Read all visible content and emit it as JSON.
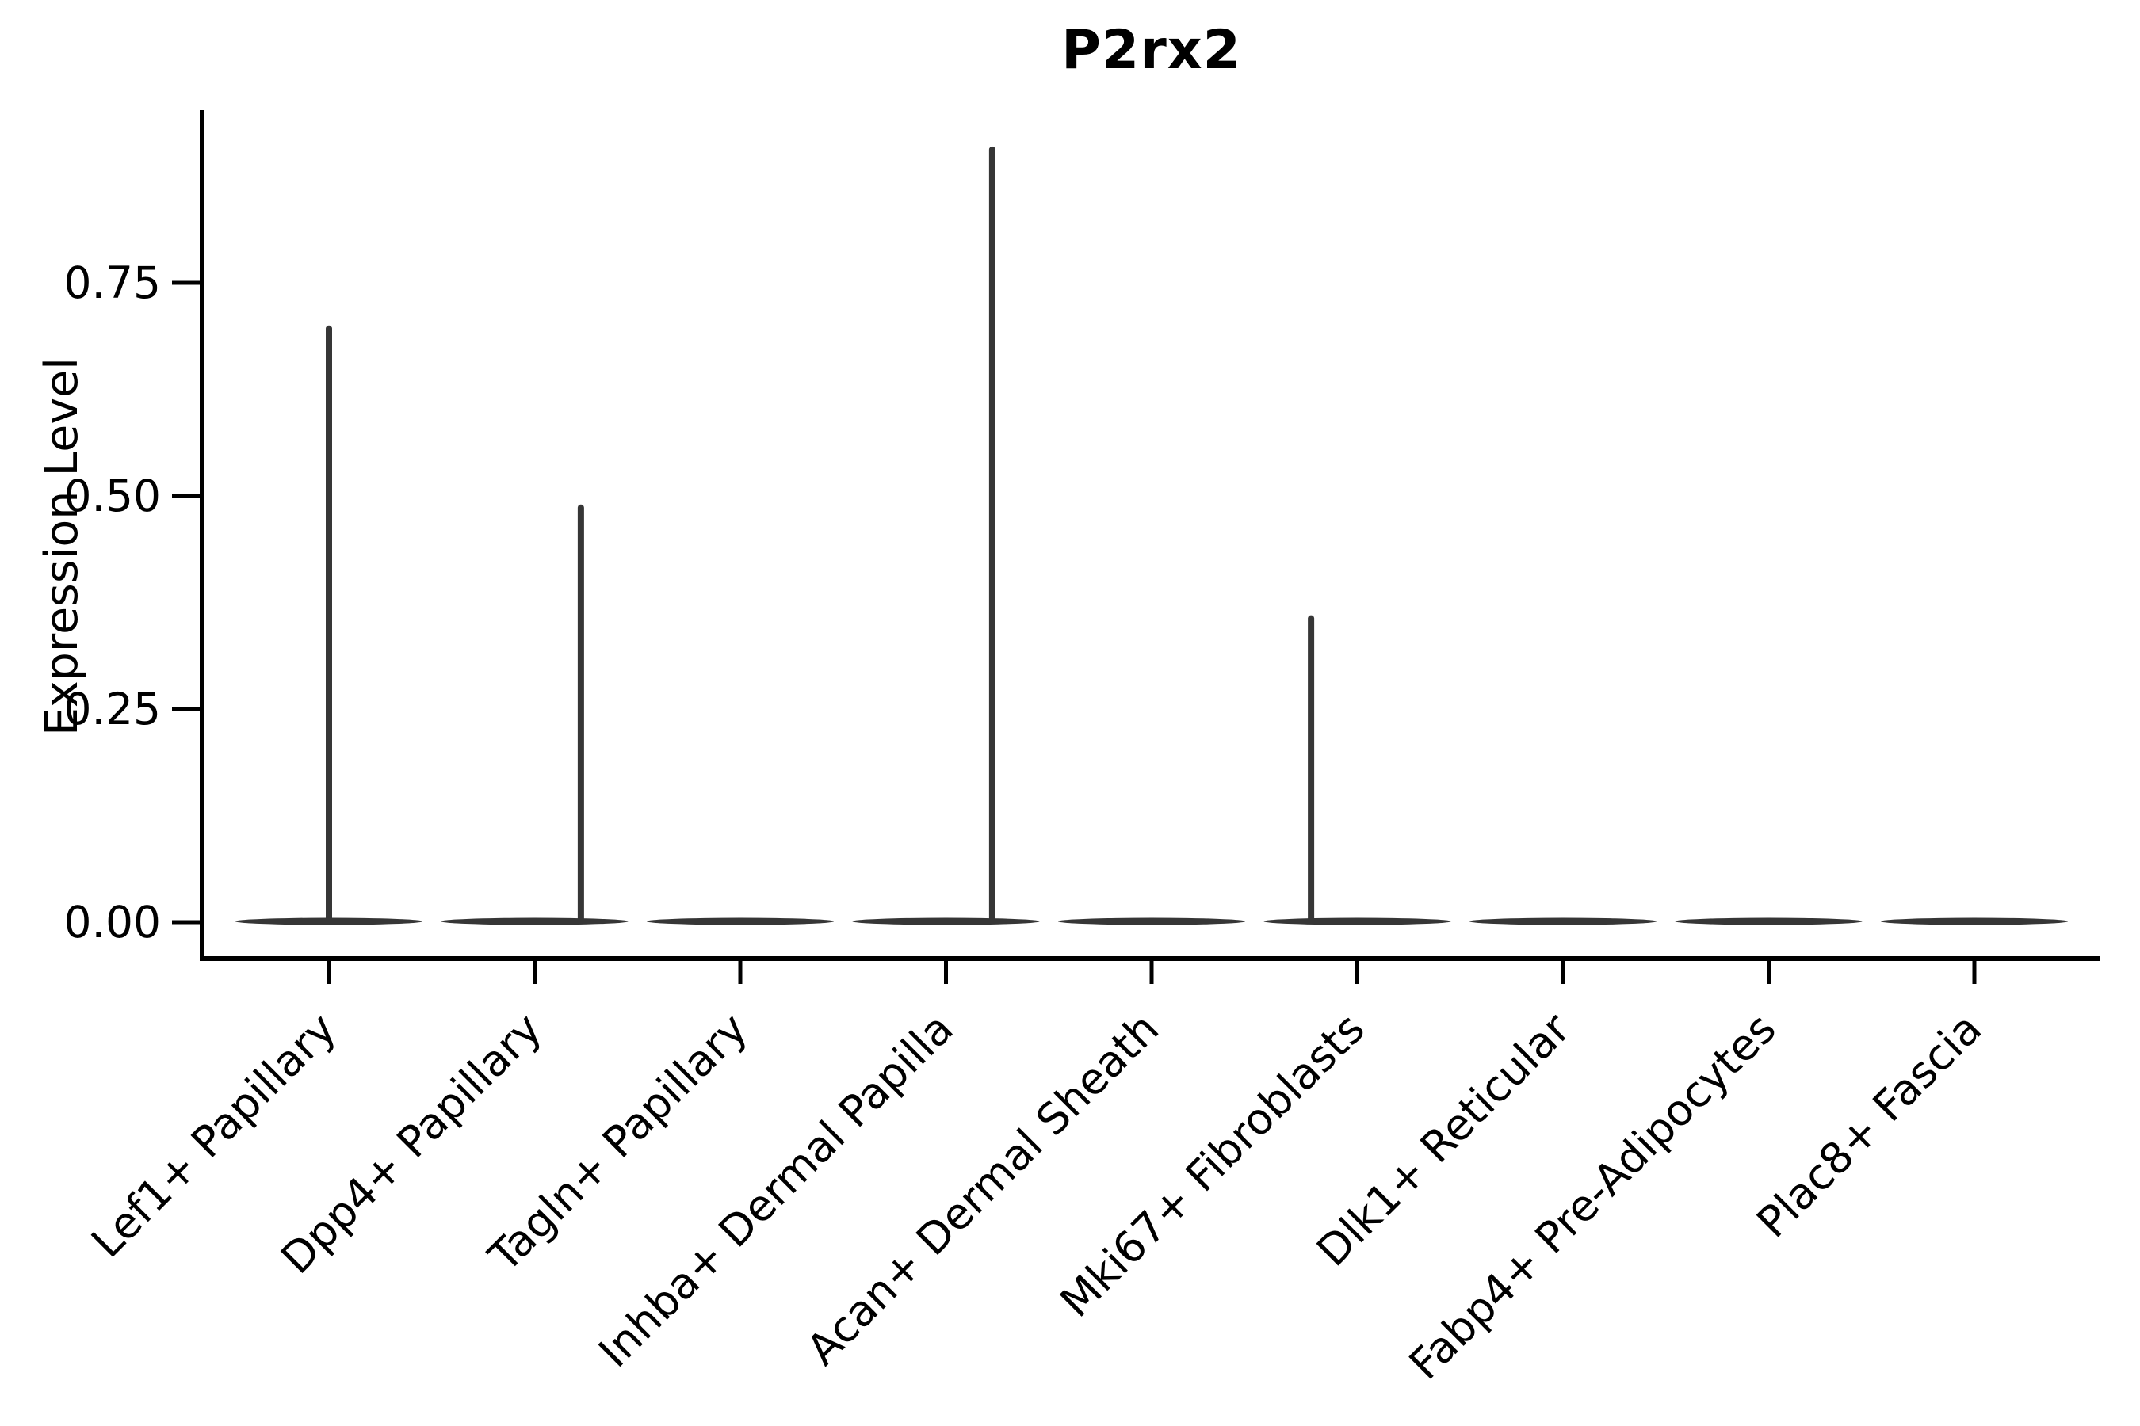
{
  "figure": {
    "background": "#ffffff",
    "text_color": "#000000",
    "violin_color": "#363636",
    "axis_color": "#000000"
  },
  "chart_data": {
    "type": "violin",
    "title": "P2rx2",
    "xlabel": "",
    "ylabel": "Expression Level",
    "ylim": [
      0,
      0.95
    ],
    "grid": false,
    "legend": null,
    "yticks": {
      "values": [
        0,
        0.25,
        0.5,
        0.75
      ],
      "labels": [
        "0.00",
        "0.25",
        "0.50",
        "0.75"
      ]
    },
    "categories": [
      "Lef1+ Papillary",
      "Dpp4+ Papillary",
      "Tagln+ Papillary",
      "Inhba+ Dermal Papilla",
      "Acan+ Dermal Sheath",
      "Mki67+ Fibroblasts",
      "Dlk1+ Reticular",
      "Fabp4+ Pre-Adipocytes",
      "Plac8+ Fascia"
    ],
    "violins": [
      {
        "category": "Lef1+ Papillary",
        "baseline_mass_at_zero": true,
        "max_expression": 0.7,
        "spike_offset_frac": 0.0
      },
      {
        "category": "Dpp4+ Papillary",
        "baseline_mass_at_zero": true,
        "max_expression": 0.49,
        "spike_offset_frac": 0.225
      },
      {
        "category": "Tagln+ Papillary",
        "baseline_mass_at_zero": true,
        "max_expression": 0.0,
        "spike_offset_frac": 0.0
      },
      {
        "category": "Inhba+ Dermal Papilla",
        "baseline_mass_at_zero": true,
        "max_expression": 0.91,
        "spike_offset_frac": 0.225
      },
      {
        "category": "Acan+ Dermal Sheath",
        "baseline_mass_at_zero": true,
        "max_expression": 0.0,
        "spike_offset_frac": 0.0
      },
      {
        "category": "Mki67+ Fibroblasts",
        "baseline_mass_at_zero": true,
        "max_expression": 0.36,
        "spike_offset_frac": -0.225
      },
      {
        "category": "Dlk1+ Reticular",
        "baseline_mass_at_zero": true,
        "max_expression": 0.0,
        "spike_offset_frac": 0.0
      },
      {
        "category": "Fabp4+ Pre-Adipocytes",
        "baseline_mass_at_zero": true,
        "max_expression": 0.0,
        "spike_offset_frac": 0.0
      },
      {
        "category": "Plac8+ Fascia",
        "baseline_mass_at_zero": true,
        "max_expression": 0.0,
        "spike_offset_frac": 0.0
      }
    ]
  }
}
